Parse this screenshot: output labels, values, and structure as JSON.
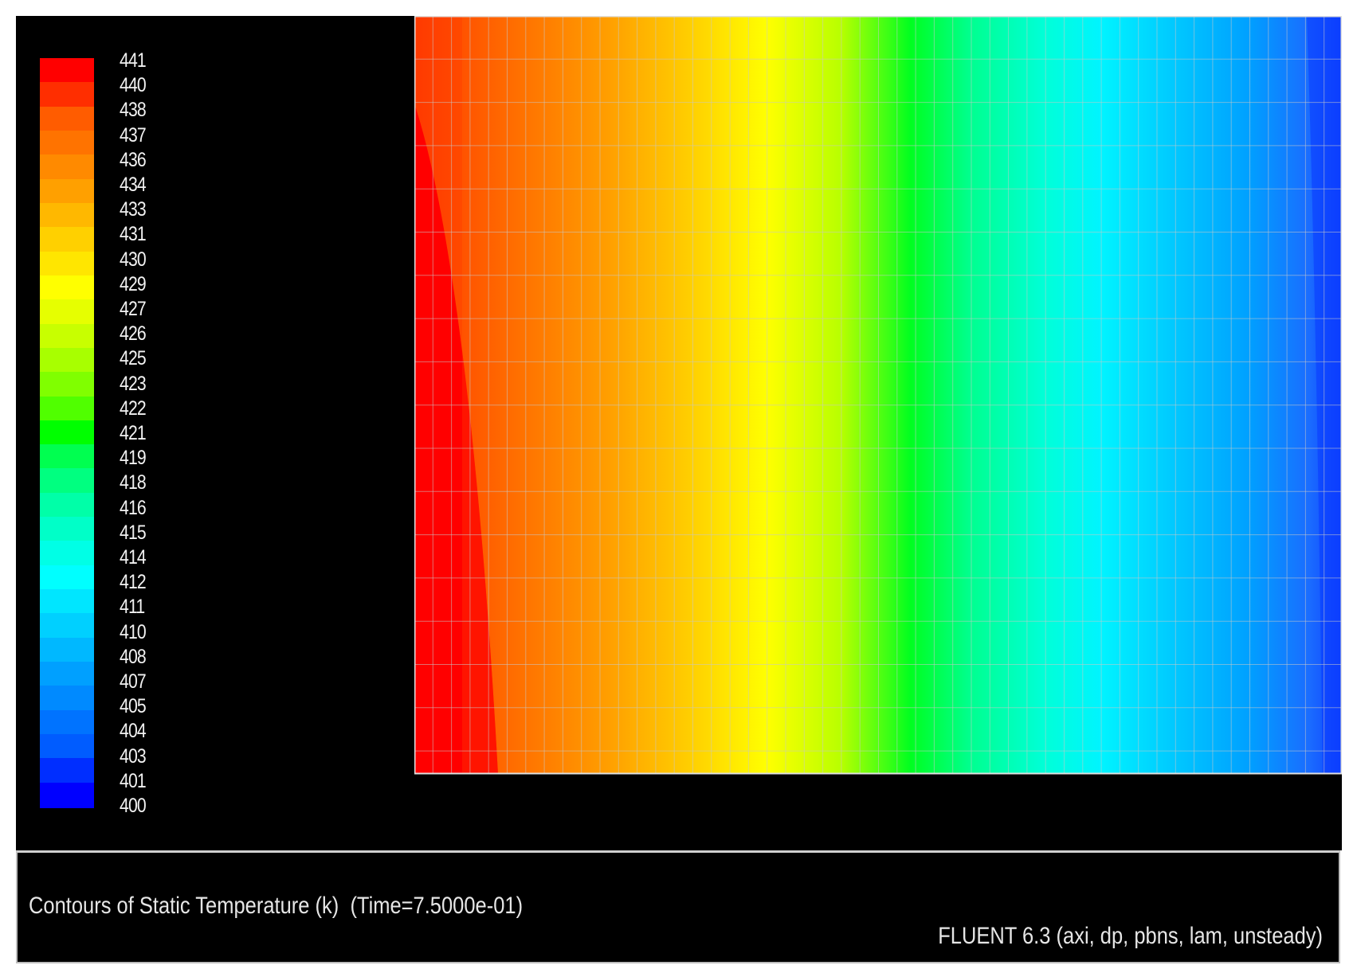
{
  "colormap": {
    "labels": [
      "441",
      "440",
      "438",
      "437",
      "436",
      "434",
      "433",
      "431",
      "430",
      "429",
      "427",
      "426",
      "425",
      "423",
      "422",
      "421",
      "419",
      "418",
      "416",
      "415",
      "414",
      "412",
      "411",
      "410",
      "408",
      "407",
      "405",
      "404",
      "403",
      "401",
      "400"
    ],
    "colors": [
      "#ff0000",
      "#ff2e00",
      "#ff5c00",
      "#ff7300",
      "#ff8a00",
      "#ffa000",
      "#ffb800",
      "#ffd000",
      "#ffe600",
      "#ffff00",
      "#e6ff00",
      "#c8ff00",
      "#a8ff00",
      "#80ff00",
      "#50ff00",
      "#00ff00",
      "#00ff50",
      "#00ff80",
      "#00ffa8",
      "#00ffc8",
      "#00ffe6",
      "#00ffff",
      "#00e6ff",
      "#00d0ff",
      "#00b8ff",
      "#00a0ff",
      "#008aff",
      "#0073ff",
      "#005cff",
      "#002eff",
      "#0000ff"
    ]
  },
  "contour_field": {
    "mesh_color": "#c8c8c8"
  },
  "info_panel": {
    "title": "Contours of Static Temperature (k)  (Time=7.5000e-01)",
    "solver": "FLUENT 6.3 (axi, dp, pbns, lam, unsteady)"
  }
}
